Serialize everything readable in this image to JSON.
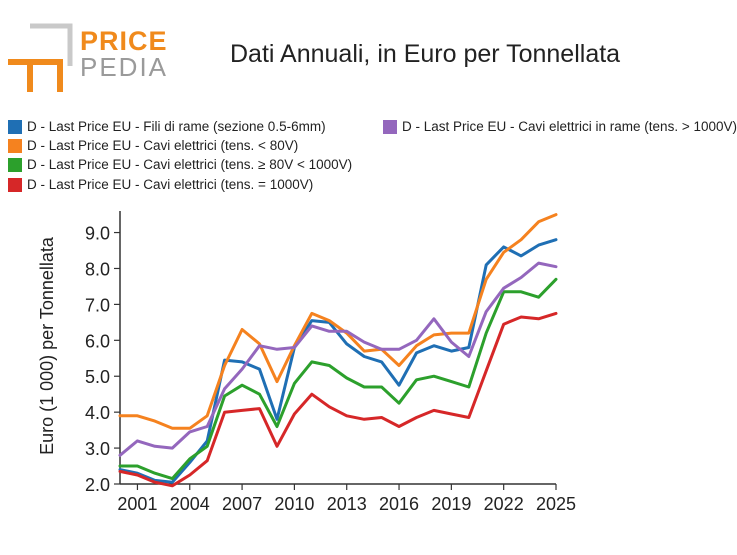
{
  "logo": {
    "line1": "PRICE",
    "line2": "PEDIA"
  },
  "chart_data": {
    "type": "line",
    "title": "Dati Annuali, in Euro per Tonnellata",
    "xlabel": "",
    "ylabel": "Euro (1 000) per Tonnellata",
    "x": [
      2000,
      2001,
      2002,
      2003,
      2004,
      2005,
      2006,
      2007,
      2008,
      2009,
      2010,
      2011,
      2012,
      2013,
      2014,
      2015,
      2016,
      2017,
      2018,
      2019,
      2020,
      2021,
      2022,
      2023,
      2024,
      2025
    ],
    "xlim": [
      2000,
      2025
    ],
    "xticks": [
      "2001",
      "2004",
      "2007",
      "2010",
      "2013",
      "2016",
      "2019",
      "2022",
      "2025"
    ],
    "ylim": [
      2.0,
      9.6
    ],
    "yticks": [
      "2.0",
      "3.0",
      "4.0",
      "5.0",
      "6.0",
      "7.0",
      "8.0",
      "9.0"
    ],
    "series": [
      {
        "name": "D - Last Price EU - Fili di rame (sezione 0.5-6mm)",
        "color": "#1f6fb4",
        "values": [
          2.4,
          2.3,
          2.1,
          2.05,
          2.6,
          3.2,
          5.45,
          5.4,
          5.2,
          3.8,
          5.8,
          6.55,
          6.5,
          5.9,
          5.55,
          5.4,
          4.75,
          5.65,
          5.85,
          5.7,
          5.8,
          8.1,
          8.6,
          8.35,
          8.65,
          8.8
        ]
      },
      {
        "name": "D - Last Price EU - Cavi elettrici (tens. < 80V)",
        "color": "#f5821f",
        "values": [
          3.9,
          3.9,
          3.75,
          3.55,
          3.55,
          3.9,
          5.3,
          6.3,
          5.9,
          4.85,
          5.85,
          6.75,
          6.55,
          6.2,
          5.7,
          5.75,
          5.3,
          5.85,
          6.15,
          6.2,
          6.2,
          7.7,
          8.45,
          8.8,
          9.3,
          9.5
        ]
      },
      {
        "name": "D - Last Price EU - Cavi elettrici (tens. ≥ 80V < 1000V)",
        "color": "#2ca02c",
        "values": [
          2.5,
          2.5,
          2.3,
          2.15,
          2.7,
          3.05,
          4.45,
          4.75,
          4.5,
          3.6,
          4.8,
          5.4,
          5.3,
          4.95,
          4.7,
          4.7,
          4.25,
          4.9,
          5.0,
          4.85,
          4.7,
          6.2,
          7.35,
          7.35,
          7.2,
          7.7
        ]
      },
      {
        "name": "D - Last Price EU - Cavi elettrici (tens. = 1000V)",
        "color": "#d62728",
        "values": [
          2.35,
          2.25,
          2.05,
          1.95,
          2.25,
          2.65,
          4.0,
          4.05,
          4.1,
          3.05,
          3.95,
          4.5,
          4.15,
          3.9,
          3.8,
          3.85,
          3.6,
          3.85,
          4.05,
          3.95,
          3.85,
          5.15,
          6.45,
          6.65,
          6.6,
          6.75
        ]
      },
      {
        "name": "D - Last Price EU - Cavi elettrici in rame (tens. > 1000V)",
        "color": "#9467bd",
        "values": [
          2.8,
          3.2,
          3.05,
          3.0,
          3.45,
          3.6,
          4.65,
          5.2,
          5.85,
          5.75,
          5.8,
          6.4,
          6.25,
          6.25,
          5.95,
          5.75,
          5.75,
          6.0,
          6.6,
          5.95,
          5.55,
          6.8,
          7.45,
          7.75,
          8.15,
          8.05
        ]
      }
    ]
  }
}
